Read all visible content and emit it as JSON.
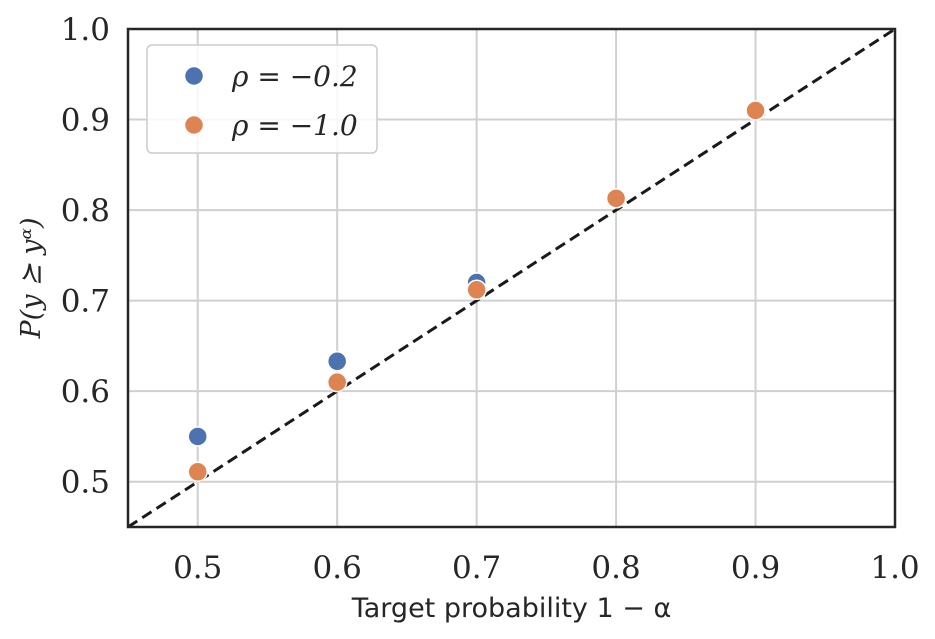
{
  "chart_data": {
    "type": "scatter",
    "title": "",
    "xlabel": "Target probability 1 − α",
    "ylabel": "P(y ⪰ yᵅ)",
    "xlim": [
      0.45,
      1.0
    ],
    "ylim": [
      0.45,
      1.0
    ],
    "xticks": [
      "0.5",
      "0.6",
      "0.7",
      "0.8",
      "0.9",
      "1.0"
    ],
    "yticks": [
      "0.5",
      "0.6",
      "0.7",
      "0.8",
      "0.9",
      "1.0"
    ],
    "grid": true,
    "legend_position": "top-left",
    "reference_line": {
      "style": "dashed",
      "color": "#1a1a1a",
      "from": [
        0.45,
        0.45
      ],
      "to": [
        1.0,
        1.0
      ]
    },
    "series": [
      {
        "name": "ρ = −0.2",
        "color": "#4c72b0",
        "x": [
          0.5,
          0.6,
          0.7
        ],
        "y": [
          0.55,
          0.633,
          0.72
        ]
      },
      {
        "name": "ρ = −1.0",
        "color": "#dd8452",
        "x": [
          0.5,
          0.6,
          0.7,
          0.8,
          0.9
        ],
        "y": [
          0.511,
          0.61,
          0.712,
          0.813,
          0.91
        ]
      }
    ]
  }
}
